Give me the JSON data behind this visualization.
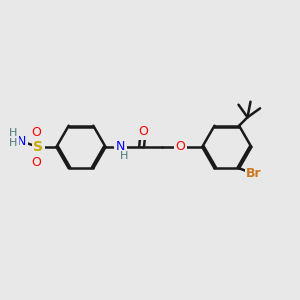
{
  "bg_color": "#e8e8e8",
  "bond_color": "#1a1a1a",
  "bond_width": 1.8,
  "dbo": 0.055,
  "atom_colors": {
    "N": "#0000ff",
    "S": "#ccaa00",
    "O": "#ff0000",
    "Br": "#cc7722",
    "H": "#4a7a7a",
    "C": "#1a1a1a"
  },
  "figsize": [
    3.0,
    3.0
  ],
  "dpi": 100,
  "xlim": [
    0,
    10
  ],
  "ylim": [
    0,
    10
  ]
}
